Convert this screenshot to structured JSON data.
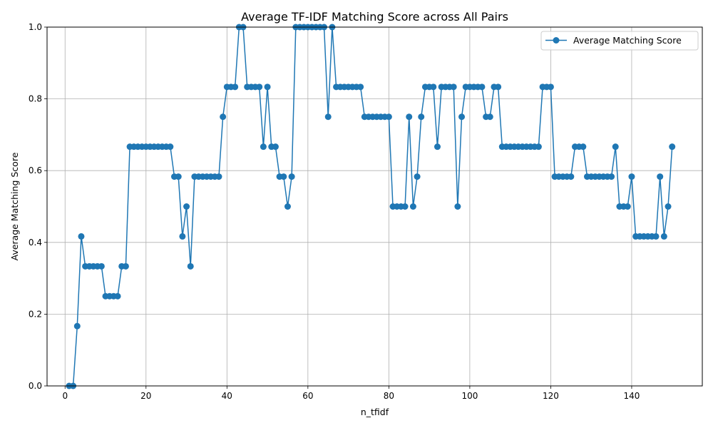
{
  "chart_data": {
    "type": "line",
    "title": "Average TF-IDF Matching Score across All Pairs",
    "xlabel": "n_tfidf",
    "ylabel": "Average Matching Score",
    "xlim": [
      -4.45,
      157.45
    ],
    "ylim": [
      0,
      1
    ],
    "x_ticks": [
      0,
      20,
      40,
      60,
      80,
      100,
      120,
      140
    ],
    "y_ticks": [
      0.0,
      0.2,
      0.4,
      0.6,
      0.8,
      1.0
    ],
    "x_tick_labels": [
      "0",
      "20",
      "40",
      "60",
      "80",
      "100",
      "120",
      "140"
    ],
    "y_tick_labels": [
      "0.0",
      "0.2",
      "0.4",
      "0.6",
      "0.8",
      "1.0"
    ],
    "grid": true,
    "legend_position": "top-right",
    "series": [
      {
        "name": "Average Matching Score",
        "color": "#1f77b4",
        "marker": "circle",
        "x_start": 1,
        "x_step": 1,
        "values": [
          0.0,
          0.0,
          0.1667,
          0.4167,
          0.3333,
          0.3333,
          0.3333,
          0.3333,
          0.3333,
          0.25,
          0.25,
          0.25,
          0.25,
          0.3333,
          0.3333,
          0.6667,
          0.6667,
          0.6667,
          0.6667,
          0.6667,
          0.6667,
          0.6667,
          0.6667,
          0.6667,
          0.6667,
          0.6667,
          0.5833,
          0.5833,
          0.4167,
          0.5,
          0.3333,
          0.5833,
          0.5833,
          0.5833,
          0.5833,
          0.5833,
          0.5833,
          0.5833,
          0.75,
          0.8333,
          0.8333,
          0.8333,
          1.0,
          1.0,
          0.8333,
          0.8333,
          0.8333,
          0.8333,
          0.6667,
          0.8333,
          0.6667,
          0.6667,
          0.5833,
          0.5833,
          0.5,
          0.5833,
          1.0,
          1.0,
          1.0,
          1.0,
          1.0,
          1.0,
          1.0,
          1.0,
          0.75,
          1.0,
          0.8333,
          0.8333,
          0.8333,
          0.8333,
          0.8333,
          0.8333,
          0.8333,
          0.75,
          0.75,
          0.75,
          0.75,
          0.75,
          0.75,
          0.75,
          0.5,
          0.5,
          0.5,
          0.5,
          0.75,
          0.5,
          0.5833,
          0.75,
          0.8333,
          0.8333,
          0.8333,
          0.6667,
          0.8333,
          0.8333,
          0.8333,
          0.8333,
          0.5,
          0.75,
          0.8333,
          0.8333,
          0.8333,
          0.8333,
          0.8333,
          0.75,
          0.75,
          0.8333,
          0.8333,
          0.6667,
          0.6667,
          0.6667,
          0.6667,
          0.6667,
          0.6667,
          0.6667,
          0.6667,
          0.6667,
          0.6667,
          0.8333,
          0.8333,
          0.8333,
          0.5833,
          0.5833,
          0.5833,
          0.5833,
          0.5833,
          0.6667,
          0.6667,
          0.6667,
          0.5833,
          0.5833,
          0.5833,
          0.5833,
          0.5833,
          0.5833,
          0.5833,
          0.6667,
          0.5,
          0.5,
          0.5,
          0.5833,
          0.4167,
          0.4167,
          0.4167,
          0.4167,
          0.4167,
          0.4167,
          0.5833,
          0.4167,
          0.5,
          0.6667
        ]
      }
    ]
  }
}
